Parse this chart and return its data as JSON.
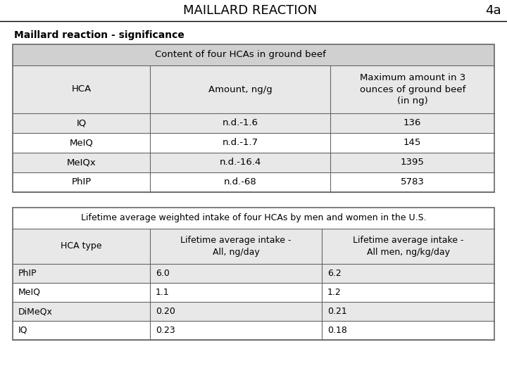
{
  "title": "MAILLARD REACTION",
  "page_num": "4a",
  "subtitle": "Maillard reaction - significance",
  "table1_header": "Content of four HCAs in ground beef",
  "table1_col_headers": [
    "HCA",
    "Amount, ng/g",
    "Maximum amount in 3\nounces of ground beef\n(in ng)"
  ],
  "table1_rows": [
    [
      "IQ",
      "n.d.-1.6",
      "136"
    ],
    [
      "MeIQ",
      "n.d.-1.7",
      "145"
    ],
    [
      "MeIQx",
      "n.d.-16.4",
      "1395"
    ],
    [
      "PhIP",
      "n.d.-68",
      "5783"
    ]
  ],
  "table2_header": "Lifetime average weighted intake of four HCAs by men and women in the U.S.",
  "table2_col_headers": [
    "HCA type",
    "Lifetime average intake -\nAll, ng/day",
    "Lifetime average intake -\nAll men, ng/kg/day"
  ],
  "table2_rows": [
    [
      "PhIP",
      "6.0",
      "6.2"
    ],
    [
      "MeIQ",
      "1.1",
      "1.2"
    ],
    [
      "DiMeQx",
      "0.20",
      "0.21"
    ],
    [
      "IQ",
      "0.23",
      "0.18"
    ]
  ],
  "bg_color": "#ffffff",
  "header_bg": "#d0d0d0",
  "col_header_bg": "#e8e8e8",
  "row_alt_bg": "#f0f0f0",
  "border_color": "#666666",
  "title_fontsize": 13,
  "subtitle_fontsize": 10,
  "table_fontsize": 9.5,
  "small_fontsize": 9
}
